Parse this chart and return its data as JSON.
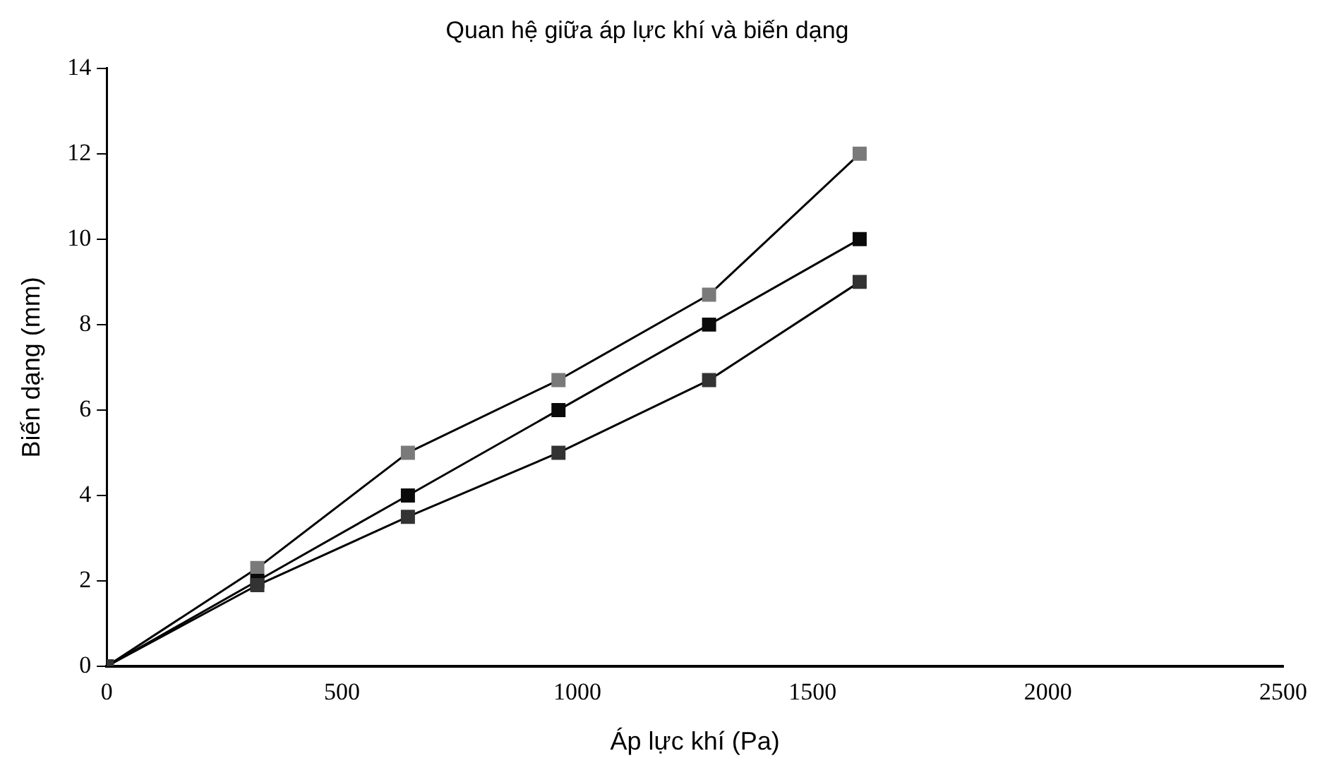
{
  "chart_data": {
    "type": "line",
    "title": "Quan hệ giữa áp lực khí và biến dạng",
    "xlabel": "Áp lực khí (Pa)",
    "ylabel": "Biến dạng (mm)",
    "x": [
      0,
      320,
      640,
      960,
      1280,
      1600
    ],
    "series": [
      {
        "color": "#7a7a7a",
        "values": [
          0,
          2.3,
          5,
          6.7,
          8.7,
          12
        ]
      },
      {
        "color": "#0a0a0a",
        "values": [
          0,
          2,
          4,
          6,
          8,
          10
        ]
      },
      {
        "color": "#333333",
        "values": [
          0,
          1.9,
          3.5,
          5,
          6.7,
          9
        ]
      }
    ],
    "xlim": [
      0,
      2500
    ],
    "xticks": [
      0,
      500,
      1000,
      1500,
      2000,
      2500
    ],
    "ylim": [
      0,
      14
    ],
    "yticks": [
      0,
      2,
      4,
      6,
      8,
      10,
      12,
      14
    ],
    "grid": false,
    "legend": false,
    "marker": "square",
    "line_style": "solid"
  }
}
